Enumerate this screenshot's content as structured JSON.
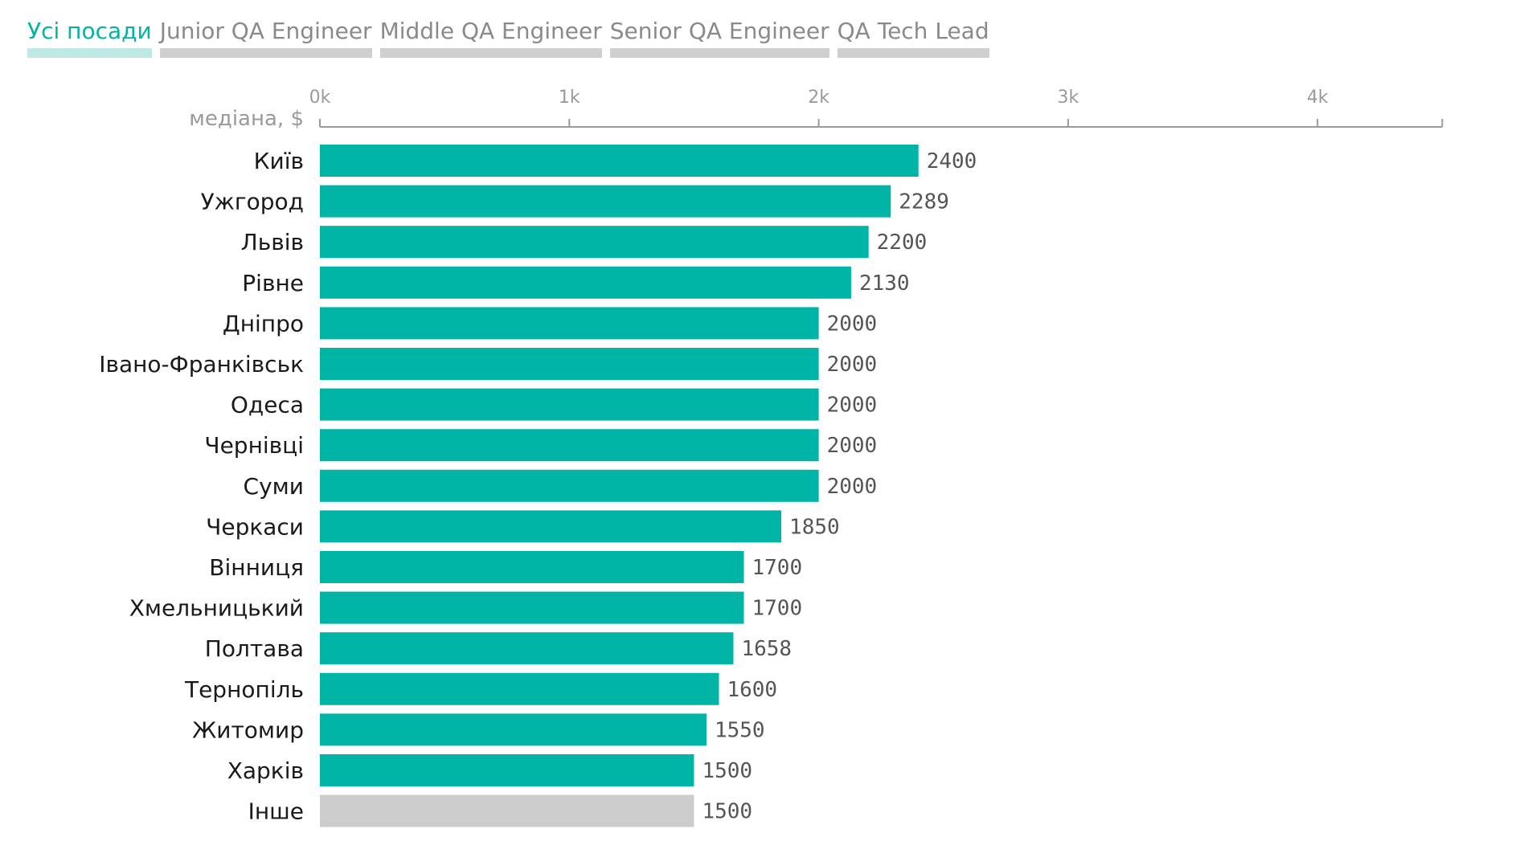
{
  "tabs": [
    {
      "label": "Усі посади",
      "active": true
    },
    {
      "label": "Junior QA Engineer",
      "active": false
    },
    {
      "label": "Middle QA Engineer",
      "active": false
    },
    {
      "label": "Senior QA Engineer",
      "active": false
    },
    {
      "label": "QA Tech Lead",
      "active": false
    }
  ],
  "colors": {
    "bar": "#00b4a6",
    "bar_other": "#cccccc",
    "axis": "#9a9a9a",
    "active_tab": "#00b4a6"
  },
  "chart_data": {
    "type": "bar",
    "orientation": "horizontal",
    "xlabel": "медіана, $",
    "xlim": [
      0,
      4500
    ],
    "ticks": [
      0,
      1000,
      2000,
      3000,
      4000
    ],
    "tick_labels": [
      "0k",
      "1k",
      "2k",
      "3k",
      "4k"
    ],
    "axis_position": "top",
    "grid": false,
    "categories": [
      "Київ",
      "Ужгород",
      "Львів",
      "Рівне",
      "Дніпро",
      "Івано-Франківськ",
      "Одеса",
      "Чернівці",
      "Суми",
      "Черкаси",
      "Вінниця",
      "Хмельницький",
      "Полтава",
      "Тернопіль",
      "Житомир",
      "Харків",
      "Інше"
    ],
    "values": [
      2400,
      2289,
      2200,
      2130,
      2000,
      2000,
      2000,
      2000,
      2000,
      1850,
      1700,
      1700,
      1658,
      1600,
      1550,
      1500,
      1500
    ],
    "highlight_other": "Інше"
  }
}
